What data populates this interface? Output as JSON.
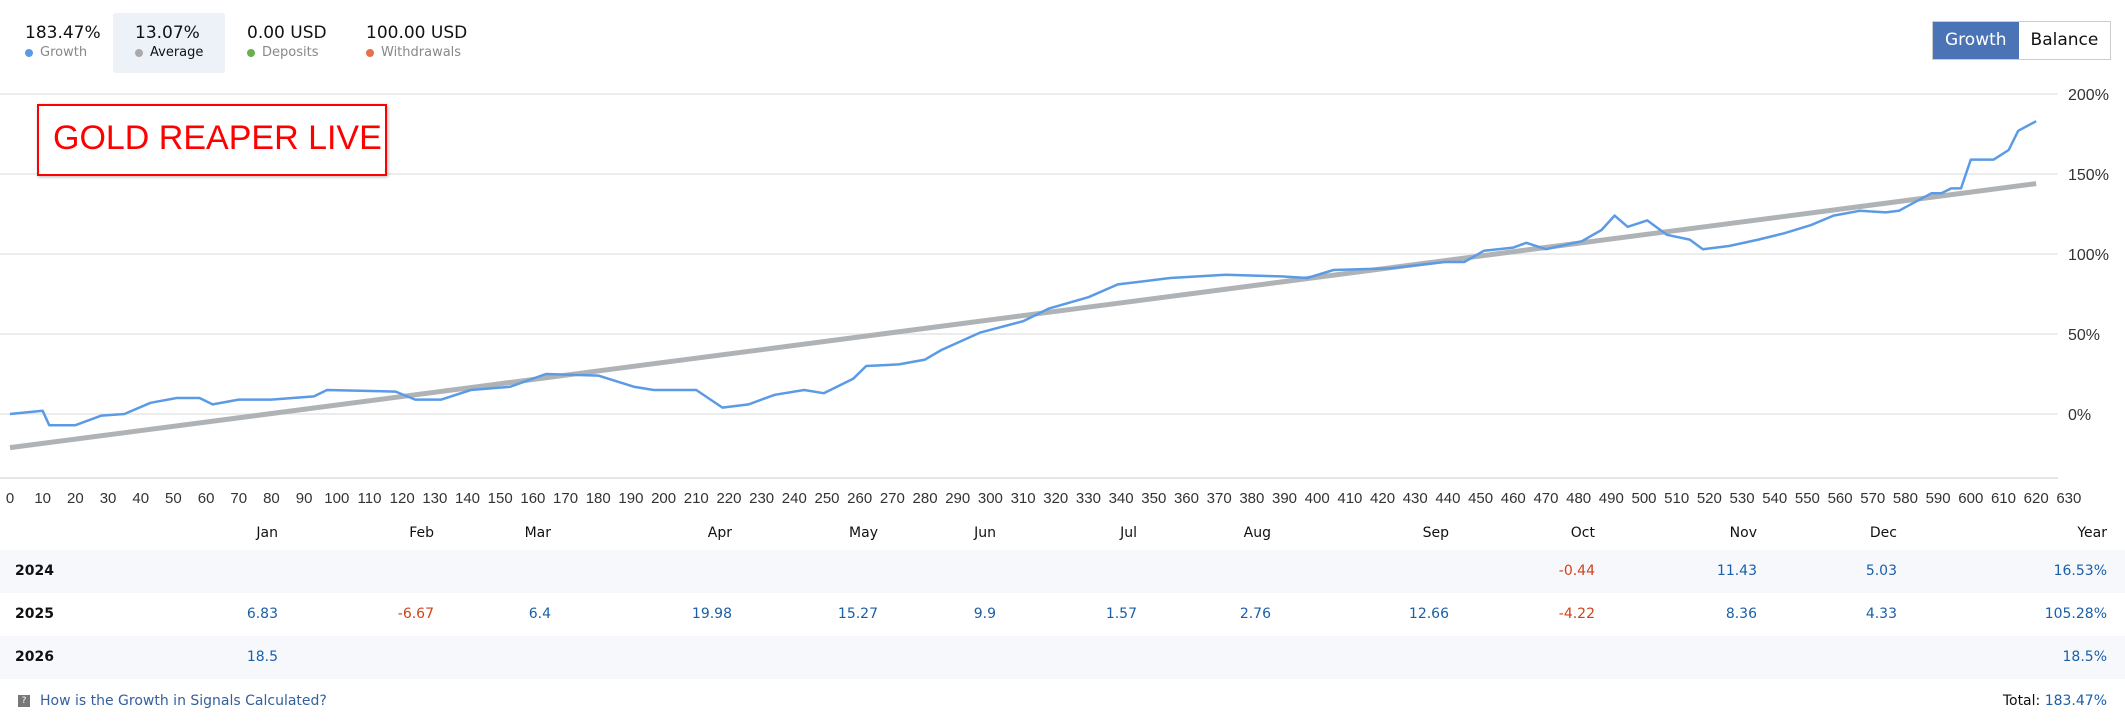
{
  "stats": [
    {
      "value": "183.47%",
      "label": "Growth",
      "color": "#5b9be6"
    },
    {
      "value": "13.07%",
      "label": "Average",
      "color": "#aaaaaa"
    },
    {
      "value": "0.00 USD",
      "label": "Deposits",
      "color": "#6ab04c"
    },
    {
      "value": "100.00 USD",
      "label": "Withdrawals",
      "color": "#e8704a"
    }
  ],
  "toggle": {
    "growth": "Growth",
    "balance": "Balance",
    "active": "Growth"
  },
  "overlay_title": "GOLD REAPER LIVE",
  "chart_data": {
    "type": "line",
    "xlim": [
      0,
      630
    ],
    "ylim": [
      -40,
      200
    ],
    "x_ticks": [
      0,
      10,
      20,
      30,
      40,
      50,
      60,
      70,
      80,
      90,
      100,
      110,
      120,
      130,
      140,
      150,
      160,
      170,
      180,
      190,
      200,
      210,
      220,
      230,
      240,
      250,
      260,
      270,
      280,
      290,
      300,
      310,
      320,
      330,
      340,
      350,
      360,
      370,
      380,
      390,
      400,
      410,
      420,
      430,
      440,
      450,
      460,
      470,
      480,
      490,
      500,
      510,
      520,
      530,
      540,
      550,
      560,
      570,
      580,
      590,
      600,
      610,
      620,
      630
    ],
    "y_ticks": [
      "0%",
      "50%",
      "100%",
      "150%",
      "200%"
    ],
    "y_tick_values": [
      0,
      50,
      100,
      150,
      200
    ],
    "grid": true,
    "series": [
      {
        "key": "growth",
        "color": "#5b9be6",
        "points": [
          [
            0,
            0
          ],
          [
            10,
            2
          ],
          [
            12,
            -7
          ],
          [
            20,
            -7
          ],
          [
            28,
            -1
          ],
          [
            35,
            0
          ],
          [
            43,
            7
          ],
          [
            51,
            10
          ],
          [
            58,
            10
          ],
          [
            62,
            6
          ],
          [
            70,
            9
          ],
          [
            80,
            9
          ],
          [
            93,
            11
          ],
          [
            97,
            15
          ],
          [
            118,
            14
          ],
          [
            124,
            9
          ],
          [
            132,
            9
          ],
          [
            141,
            15
          ],
          [
            153,
            17
          ],
          [
            164,
            25
          ],
          [
            180,
            24
          ],
          [
            191,
            17
          ],
          [
            197,
            15
          ],
          [
            210,
            15
          ],
          [
            218,
            4
          ],
          [
            226,
            6
          ],
          [
            234,
            12
          ],
          [
            243,
            15
          ],
          [
            249,
            13
          ],
          [
            258,
            22
          ],
          [
            262,
            30
          ],
          [
            272,
            31
          ],
          [
            280,
            34
          ],
          [
            285,
            40
          ],
          [
            297,
            51
          ],
          [
            310,
            58
          ],
          [
            318,
            66
          ],
          [
            330,
            73
          ],
          [
            339,
            81
          ],
          [
            355,
            85
          ],
          [
            372,
            87
          ],
          [
            389,
            86
          ],
          [
            397,
            85
          ],
          [
            405,
            90
          ],
          [
            422,
            91
          ],
          [
            439,
            95
          ],
          [
            445,
            95
          ],
          [
            451,
            102
          ],
          [
            460,
            104
          ],
          [
            464,
            107
          ],
          [
            470,
            103
          ],
          [
            481,
            108
          ],
          [
            487,
            115
          ],
          [
            491,
            124
          ],
          [
            495,
            117
          ],
          [
            501,
            121
          ],
          [
            507,
            112
          ],
          [
            514,
            109
          ],
          [
            518,
            103
          ],
          [
            526,
            105
          ],
          [
            535,
            109
          ],
          [
            543,
            113
          ],
          [
            551,
            118
          ],
          [
            558,
            124
          ],
          [
            566,
            127
          ],
          [
            574,
            126
          ],
          [
            578,
            127
          ],
          [
            588,
            138
          ],
          [
            591,
            138
          ],
          [
            594,
            141
          ],
          [
            597,
            141
          ],
          [
            600,
            159
          ],
          [
            607,
            159
          ],
          [
            611.6,
            165
          ],
          [
            614.5,
            177
          ],
          [
            620,
            183
          ]
        ]
      },
      {
        "key": "average",
        "color": "#b0b3b6",
        "points": [
          [
            0,
            -21
          ],
          [
            620,
            144
          ]
        ]
      }
    ]
  },
  "table": {
    "months": [
      "Jan",
      "Feb",
      "Mar",
      "Apr",
      "May",
      "Jun",
      "Jul",
      "Aug",
      "Sep",
      "Oct",
      "Nov",
      "Dec",
      "Year"
    ],
    "rows": [
      {
        "year": "2024",
        "values": [
          "",
          "",
          "",
          "",
          "",
          "",
          "",
          "",
          "",
          "-0.44",
          "11.43",
          "5.03",
          "16.53%"
        ]
      },
      {
        "year": "2025",
        "values": [
          "6.83",
          "-6.67",
          "6.4",
          "19.98",
          "15.27",
          "9.9",
          "1.57",
          "2.76",
          "12.66",
          "-4.22",
          "8.36",
          "4.33",
          "105.28%"
        ]
      },
      {
        "year": "2026",
        "values": [
          "18.5",
          "",
          "",
          "",
          "",
          "",
          "",
          "",
          "",
          "",
          "",
          "",
          "18.5%"
        ]
      }
    ]
  },
  "footer": {
    "help_link": "How is the Growth in Signals Calculated?",
    "total_label": "Total:",
    "total_value": "183.47%"
  }
}
